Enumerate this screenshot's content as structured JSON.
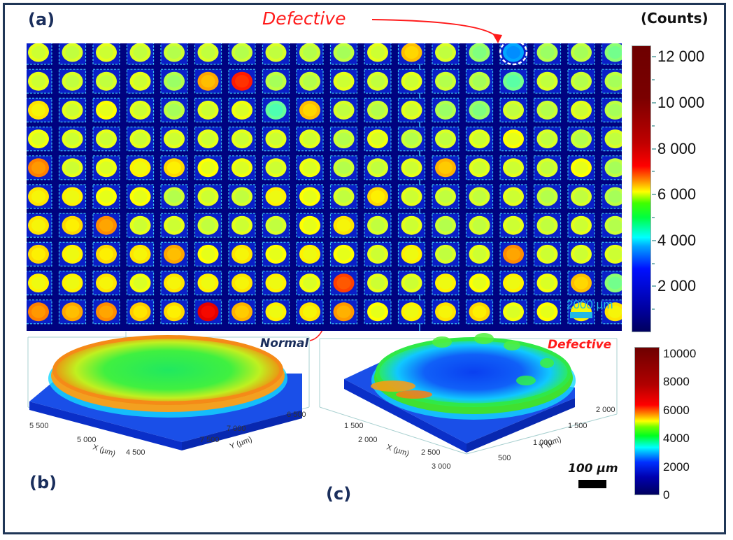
{
  "figure": {
    "panel_labels": {
      "a": "(a)",
      "b": "(b)",
      "c": "(c)"
    },
    "annotations": {
      "defective_top": "Defective",
      "normal": "Normal",
      "defective_panel_c": "Defective"
    },
    "colors": {
      "frame_border": "#1f3656",
      "panel_label": "#1a2e5c",
      "defective_text": "#ff1a1a",
      "map_background": "#00027f",
      "scale_bar_map": "#22b8e6"
    }
  },
  "chart_data": [
    {
      "type": "heatmap",
      "title": "(a)",
      "description": "Intensity map of a micro-LED array (18 columns x 10 rows)",
      "colorbar": {
        "title": "(Counts)",
        "ticks": [
          "12 000",
          "10 000",
          "8 000",
          "6 000",
          "4 000",
          "2 000"
        ],
        "tick_values": [
          12000,
          10000,
          8000,
          6000,
          4000,
          2000
        ],
        "range": [
          0,
          12500
        ],
        "colormap": "jet"
      },
      "grid": {
        "rows": 10,
        "cols": 18
      },
      "scale_bar": "2000 µm",
      "defective_cell": {
        "row": 1,
        "col": 15,
        "label": "Defective"
      },
      "normal_cell": {
        "row": 10,
        "col": 9,
        "label": "Normal"
      },
      "cell_levels": [
        [
          4800,
          4700,
          4800,
          4700,
          4600,
          4700,
          4600,
          4700,
          4600,
          4500,
          4800,
          5500,
          4700,
          4200,
          2300,
          4400,
          4500,
          4100
        ],
        [
          4800,
          4700,
          4700,
          4800,
          4400,
          5700,
          6800,
          4500,
          4600,
          4800,
          4700,
          4800,
          4600,
          4500,
          3900,
          4700,
          4600,
          4500
        ],
        [
          5200,
          4800,
          5000,
          4800,
          4500,
          4800,
          4900,
          3800,
          5500,
          4700,
          4600,
          4800,
          4400,
          4200,
          4700,
          4600,
          4800,
          4500
        ],
        [
          4900,
          4800,
          4800,
          4800,
          4800,
          4800,
          4800,
          4800,
          4800,
          4600,
          4900,
          4600,
          4700,
          4800,
          5000,
          4700,
          4600,
          4700
        ],
        [
          6000,
          4800,
          4900,
          5100,
          5300,
          5000,
          4900,
          4800,
          4900,
          4600,
          4700,
          4800,
          5600,
          4800,
          4800,
          4700,
          5000,
          4500
        ],
        [
          5200,
          5100,
          5000,
          5000,
          4600,
          4800,
          4700,
          5100,
          5000,
          4700,
          5300,
          4800,
          4700,
          4700,
          4800,
          4600,
          4700,
          4500
        ],
        [
          5200,
          5300,
          5900,
          4800,
          4800,
          4700,
          4800,
          4700,
          5000,
          5200,
          4700,
          4800,
          4600,
          4700,
          4800,
          4700,
          4800,
          4600
        ],
        [
          5300,
          5100,
          5300,
          5200,
          5700,
          5000,
          5200,
          5000,
          5100,
          5000,
          4800,
          5100,
          4700,
          4800,
          5900,
          4800,
          4800,
          4800
        ],
        [
          5100,
          5100,
          5200,
          4900,
          5200,
          5100,
          5200,
          5100,
          4900,
          6500,
          4800,
          4800,
          5100,
          5000,
          5100,
          4900,
          5500,
          4100
        ],
        [
          6000,
          5700,
          5900,
          5400,
          5300,
          7200,
          5600,
          5100,
          5200,
          5800,
          5000,
          5100,
          5200,
          5300,
          4900,
          5000,
          5100,
          5200
        ]
      ]
    },
    {
      "type": "surface3d",
      "title": "(b)",
      "label": "Normal",
      "xlabel": "X (µm)",
      "ylabel": "Y (µm)",
      "x_ticks": [
        "5 500",
        "5 000",
        "4 500"
      ],
      "y_ticks": [
        "7 500",
        "7 000",
        "6 500"
      ],
      "x_range": [
        4300,
        5700
      ],
      "y_range": [
        6300,
        7700
      ]
    },
    {
      "type": "surface3d",
      "title": "(c)",
      "label": "Defective",
      "xlabel": "X (µm)",
      "ylabel": "Y (µm)",
      "x_ticks": [
        "1 500",
        "2 000",
        "2 500",
        "3 000"
      ],
      "y_ticks": [
        "500",
        "1 000",
        "1 500",
        "2 000"
      ],
      "x_range": [
        1200,
        3100
      ],
      "y_range": [
        300,
        2200
      ],
      "colorbar": {
        "ticks": [
          "10000",
          "8000",
          "6000",
          "4000",
          "2000",
          "0"
        ],
        "tick_values": [
          10000,
          8000,
          6000,
          4000,
          2000,
          0
        ],
        "range": [
          0,
          10500
        ],
        "colormap": "jet"
      },
      "scale_bar": "100 µm"
    }
  ]
}
